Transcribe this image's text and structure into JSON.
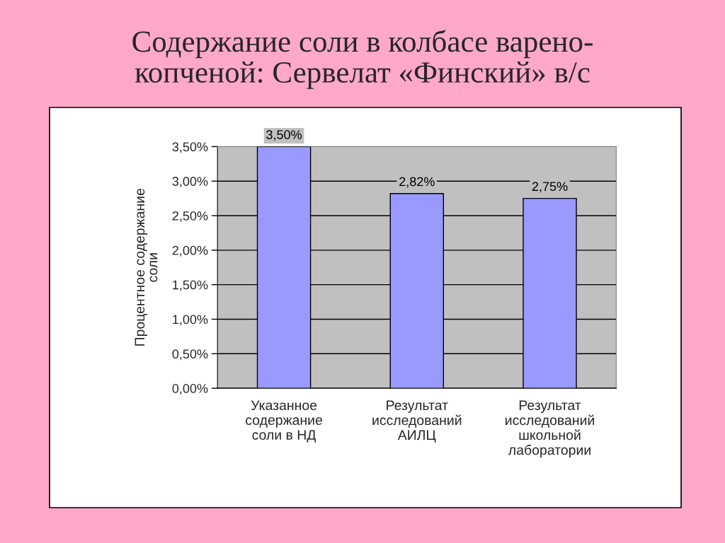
{
  "chart_data": {
    "type": "bar",
    "title": "Содержание соли в колбасе варено-\nкопченой: Сервелат «Финский» в/с",
    "ylabel": "Процентное содержание\nсоли",
    "categories": [
      "Указанное\nсодержание\nсоли в НД",
      "Результат\nисследований\nАИЛЦ",
      "Результат\nисследований\nшкольной\nлаборатории"
    ],
    "values": [
      3.5,
      2.82,
      2.75
    ],
    "value_labels": [
      "3,50%",
      "2,82%",
      "2,75%"
    ],
    "color": "#9999ff",
    "ylim": [
      0,
      3.5
    ],
    "yticks": [
      {
        "value": 0,
        "label": "0,00%"
      },
      {
        "value": 0.5,
        "label": "0,50%"
      },
      {
        "value": 1,
        "label": "1,00%"
      },
      {
        "value": 1.5,
        "label": "1,50%"
      },
      {
        "value": 2,
        "label": "2,00%"
      },
      {
        "value": 2.5,
        "label": "2,50%"
      },
      {
        "value": 3,
        "label": "3,00%"
      },
      {
        "value": 3.5,
        "label": "3,50%"
      }
    ],
    "grid": "y"
  }
}
